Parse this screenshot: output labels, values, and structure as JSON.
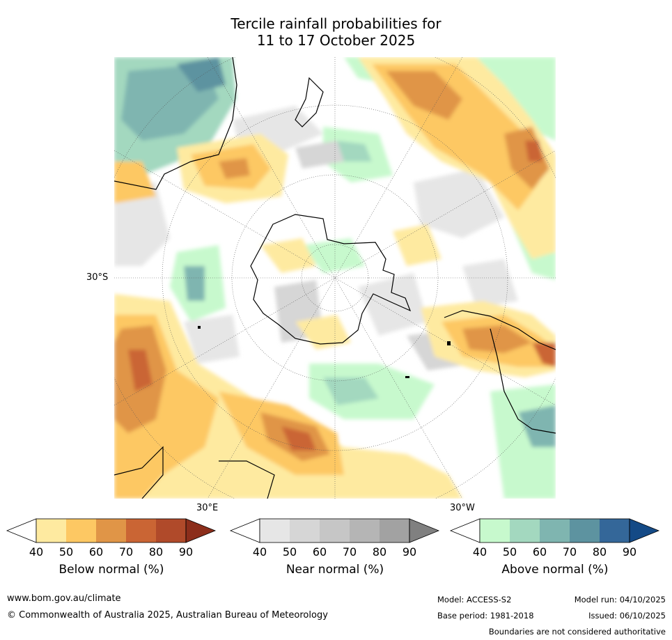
{
  "title": {
    "line1": "Tercile rainfall probabilities for",
    "line2": "11 to 17 October 2025"
  },
  "map": {
    "projection": "south-polar-stereographic",
    "labels": {
      "lat": "30°S",
      "lon_east": "30°E",
      "lon_west": "30°W"
    }
  },
  "colorbars": [
    {
      "id": "below",
      "title": "Below normal (%)",
      "ticks": [
        "40",
        "50",
        "60",
        "70",
        "80",
        "90"
      ],
      "colors": [
        "#ffffff",
        "#feeaa0",
        "#fdc863",
        "#e09547",
        "#ca6534",
        "#b04a2a",
        "#8c2e1b"
      ]
    },
    {
      "id": "near",
      "title": "Near normal (%)",
      "ticks": [
        "40",
        "50",
        "60",
        "70",
        "80",
        "90"
      ],
      "colors": [
        "#ffffff",
        "#e6e6e6",
        "#d6d6d6",
        "#c6c6c6",
        "#b5b5b5",
        "#a2a2a2",
        "#808080"
      ]
    },
    {
      "id": "above",
      "title": "Above normal (%)",
      "ticks": [
        "40",
        "50",
        "60",
        "70",
        "80",
        "90"
      ],
      "colors": [
        "#ffffff",
        "#c7f9cd",
        "#a3d8bf",
        "#7fb5b0",
        "#5d93a0",
        "#346799",
        "#144a86"
      ]
    }
  ],
  "footer": {
    "website": "www.bom.gov.au/climate",
    "copyright": "© Commonwealth of Australia 2025, Australian Bureau of Meteorology",
    "model": "Model: ACCESS-S2",
    "base_period": "Base period: 1981-2018",
    "model_run": "Model run: 04/10/2025",
    "issued": "Issued: 06/10/2025",
    "disclaimer": "Boundaries are not considered authoritative"
  }
}
